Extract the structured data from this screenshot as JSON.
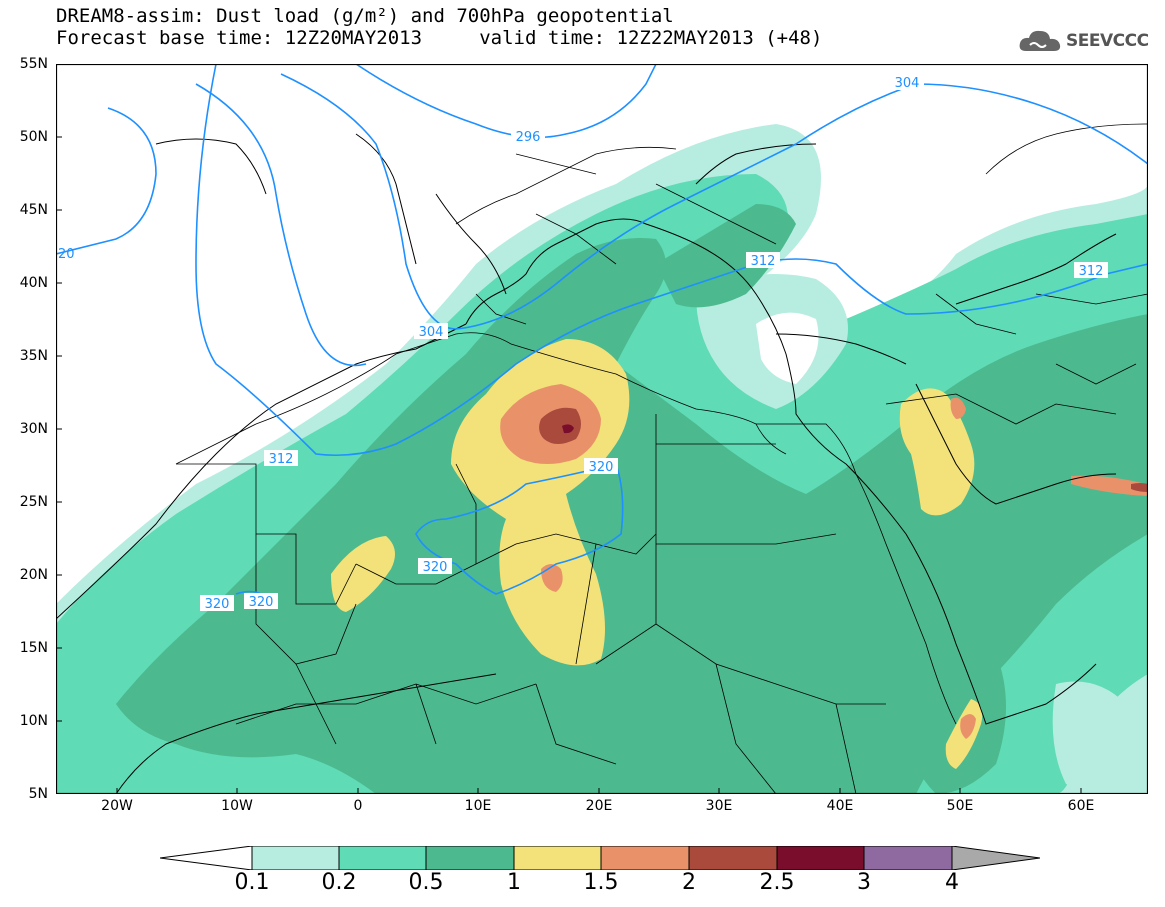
{
  "title": {
    "line1": "DREAM8-assim: Dust load (g/m²) and 700hPa geopotential",
    "line2": "Forecast base time: 12Z20MAY2013     valid time: 12Z22MAY2013 (+48)"
  },
  "logo": {
    "text": "SEEVCCC",
    "icon": "cloud-icon"
  },
  "axes": {
    "lat_labels": [
      "55N",
      "50N",
      "45N",
      "40N",
      "35N",
      "30N",
      "25N",
      "20N",
      "15N",
      "10N",
      "5N"
    ],
    "lon_labels": [
      "20W",
      "10W",
      "0",
      "10E",
      "20E",
      "30E",
      "40E",
      "50E",
      "60E"
    ]
  },
  "contour_labels": [
    "296",
    "304",
    "304",
    "312",
    "312",
    "312",
    "320",
    "320",
    "320",
    "320",
    "20"
  ],
  "colorbar": {
    "labels": [
      "0.1",
      "0.2",
      "0.5",
      "1",
      "1.5",
      "2",
      "2.5",
      "3",
      "4"
    ],
    "colors": [
      "#b7ede0",
      "#5fdbb5",
      "#4cb98f",
      "#f2e279",
      "#e9926a",
      "#a94a3d",
      "#7a0d2b",
      "#8e6aa0"
    ],
    "extend_low_color": "#ffffff",
    "extend_high_color": "#a9a9a9"
  },
  "colors": {
    "contour": "#1e90ff",
    "border": "#000000"
  }
}
